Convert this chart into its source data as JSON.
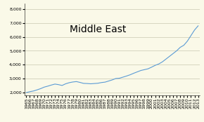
{
  "title": "Middle East",
  "background_color": "#faf9e8",
  "line_color": "#5b9bd5",
  "years": [
    1965,
    1966,
    1967,
    1968,
    1969,
    1970,
    1971,
    1972,
    1973,
    1974,
    1975,
    1976,
    1977,
    1978,
    1979,
    1980,
    1981,
    1982,
    1983,
    1984,
    1985,
    1986,
    1987,
    1988,
    1989,
    1990,
    1991,
    1992,
    1993,
    1994,
    1995,
    1996,
    1997,
    1998,
    1999,
    2000,
    2001,
    2002,
    2003,
    2004,
    2005,
    2006,
    2007,
    2008,
    2009,
    2010,
    2011,
    2012,
    2013
  ],
  "values": [
    1990,
    2050,
    2100,
    2180,
    2270,
    2380,
    2450,
    2530,
    2600,
    2560,
    2500,
    2620,
    2700,
    2750,
    2780,
    2720,
    2650,
    2640,
    2620,
    2640,
    2660,
    2710,
    2740,
    2820,
    2900,
    3000,
    3020,
    3100,
    3180,
    3270,
    3380,
    3480,
    3580,
    3640,
    3700,
    3820,
    3950,
    4050,
    4200,
    4400,
    4600,
    4800,
    5000,
    5250,
    5400,
    5700,
    6100,
    6500,
    6800
  ],
  "ylim": [
    1800,
    8400
  ],
  "yticks": [
    2000,
    3000,
    4000,
    5000,
    6000,
    7000,
    8000
  ],
  "xlim": [
    1964.5,
    2013.5
  ],
  "title_fontsize": 10,
  "tick_fontsize": 4.5
}
